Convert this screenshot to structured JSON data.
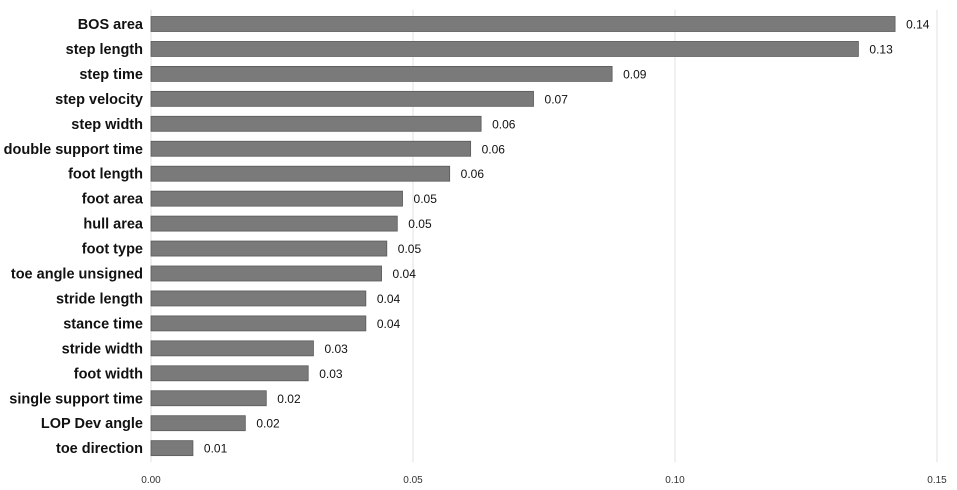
{
  "chart_data": {
    "type": "bar",
    "orientation": "horizontal",
    "title": "",
    "xlabel": "",
    "ylabel": "",
    "categories": [
      "BOS area",
      "step length",
      "step time",
      "step velocity",
      "step width",
      "double support time",
      "foot length",
      "foot area",
      "hull area",
      "foot type",
      "toe angle unsigned",
      "stride length",
      "stance time",
      "stride width",
      "foot width",
      "single support time",
      "LOP Dev angle",
      "toe direction"
    ],
    "values": [
      0.142,
      0.135,
      0.088,
      0.073,
      0.063,
      0.061,
      0.057,
      0.048,
      0.047,
      0.045,
      0.044,
      0.041,
      0.041,
      0.031,
      0.03,
      0.022,
      0.018,
      0.008
    ],
    "value_labels": [
      "0.14",
      "0.13",
      "0.09",
      "0.07",
      "0.06",
      "0.06",
      "0.06",
      "0.05",
      "0.05",
      "0.05",
      "0.04",
      "0.04",
      "0.04",
      "0.03",
      "0.03",
      "0.02",
      "0.02",
      "0.01"
    ],
    "xlim": [
      0,
      0.15
    ],
    "xticks": [
      0,
      0.05,
      0.1,
      0.15
    ],
    "xtick_labels": [
      "0.00",
      "0.05",
      "0.10",
      "0.15"
    ],
    "grid": true,
    "legend": "none",
    "bar_color": "#7a7a7a"
  }
}
